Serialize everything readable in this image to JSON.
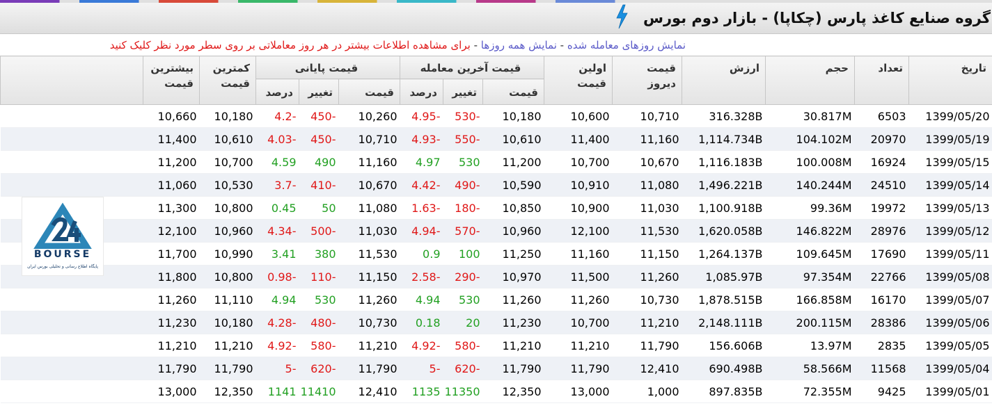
{
  "title": "گروه صنایع کاغذ پارس (چکاپا) - بازار دوم بورس",
  "info": {
    "link_traded": "نمایش روزهای معامله شده",
    "link_all": "نمایش همه روزها",
    "hint": "برای مشاهده اطلاعات بیشتر در هر روز معاملاتی بر روی سطر مورد نظر کلیک کنید"
  },
  "headers": {
    "date": "تاریخ",
    "count": "تعداد",
    "volume": "حجم",
    "value": "ارزش",
    "prev_price": "قیمت دیروز",
    "first_price": "اولین قیمت",
    "last_trade": "قیمت آخرین معامله",
    "closing": "قیمت پایانی",
    "low": "کمترین قیمت",
    "high": "بیشترین قیمت",
    "sub_price": "قیمت",
    "sub_change": "تغییر",
    "sub_percent": "درصد"
  },
  "logo": {
    "word": "BOURSE",
    "tagline": "پایگاه اطلاع رسانی و تحلیلی بورس ایران"
  },
  "rows": [
    {
      "date": "1399/05/20",
      "count": "6503",
      "volume": "30.817M",
      "value": "316.328B",
      "prev": "10,710",
      "first": "10,600",
      "lt_price": "10,180",
      "lt_change": "-530",
      "lt_pct": "-4.95",
      "cl_price": "10,260",
      "cl_change": "-450",
      "cl_pct": "-4.2",
      "low": "10,180",
      "high": "10,660"
    },
    {
      "date": "1399/05/19",
      "count": "20970",
      "volume": "104.102M",
      "value": "1,114.734B",
      "prev": "11,160",
      "first": "11,400",
      "lt_price": "10,610",
      "lt_change": "-550",
      "lt_pct": "-4.93",
      "cl_price": "10,710",
      "cl_change": "-450",
      "cl_pct": "-4.03",
      "low": "10,610",
      "high": "11,400"
    },
    {
      "date": "1399/05/15",
      "count": "16924",
      "volume": "100.008M",
      "value": "1,116.183B",
      "prev": "10,670",
      "first": "10,700",
      "lt_price": "11,200",
      "lt_change": "530",
      "lt_pct": "4.97",
      "cl_price": "11,160",
      "cl_change": "490",
      "cl_pct": "4.59",
      "low": "10,700",
      "high": "11,200"
    },
    {
      "date": "1399/05/14",
      "count": "24510",
      "volume": "140.244M",
      "value": "1,496.221B",
      "prev": "11,080",
      "first": "10,910",
      "lt_price": "10,590",
      "lt_change": "-490",
      "lt_pct": "-4.42",
      "cl_price": "10,670",
      "cl_change": "-410",
      "cl_pct": "-3.7",
      "low": "10,530",
      "high": "11,060"
    },
    {
      "date": "1399/05/13",
      "count": "19972",
      "volume": "99.36M",
      "value": "1,100.918B",
      "prev": "11,030",
      "first": "10,900",
      "lt_price": "10,850",
      "lt_change": "-180",
      "lt_pct": "-1.63",
      "cl_price": "11,080",
      "cl_change": "50",
      "cl_pct": "0.45",
      "low": "10,800",
      "high": "11,300"
    },
    {
      "date": "1399/05/12",
      "count": "28976",
      "volume": "146.822M",
      "value": "1,620.058B",
      "prev": "11,530",
      "first": "12,100",
      "lt_price": "10,960",
      "lt_change": "-570",
      "lt_pct": "-4.94",
      "cl_price": "11,030",
      "cl_change": "-500",
      "cl_pct": "-4.34",
      "low": "10,960",
      "high": "12,100"
    },
    {
      "date": "1399/05/11",
      "count": "17690",
      "volume": "109.645M",
      "value": "1,264.137B",
      "prev": "11,150",
      "first": "11,160",
      "lt_price": "11,250",
      "lt_change": "100",
      "lt_pct": "0.9",
      "cl_price": "11,530",
      "cl_change": "380",
      "cl_pct": "3.41",
      "low": "10,990",
      "high": "11,700"
    },
    {
      "date": "1399/05/08",
      "count": "22766",
      "volume": "97.354M",
      "value": "1,085.97B",
      "prev": "11,260",
      "first": "11,500",
      "lt_price": "10,970",
      "lt_change": "-290",
      "lt_pct": "-2.58",
      "cl_price": "11,150",
      "cl_change": "-110",
      "cl_pct": "-0.98",
      "low": "10,800",
      "high": "11,800"
    },
    {
      "date": "1399/05/07",
      "count": "16170",
      "volume": "166.858M",
      "value": "1,878.515B",
      "prev": "10,730",
      "first": "11,260",
      "lt_price": "11,260",
      "lt_change": "530",
      "lt_pct": "4.94",
      "cl_price": "11,260",
      "cl_change": "530",
      "cl_pct": "4.94",
      "low": "11,110",
      "high": "11,260"
    },
    {
      "date": "1399/05/06",
      "count": "28386",
      "volume": "200.115M",
      "value": "2,148.111B",
      "prev": "11,210",
      "first": "10,700",
      "lt_price": "11,230",
      "lt_change": "20",
      "lt_pct": "0.18",
      "cl_price": "10,730",
      "cl_change": "-480",
      "cl_pct": "-4.28",
      "low": "10,180",
      "high": "11,230"
    },
    {
      "date": "1399/05/05",
      "count": "2835",
      "volume": "13.97M",
      "value": "156.606B",
      "prev": "11,790",
      "first": "11,210",
      "lt_price": "11,210",
      "lt_change": "-580",
      "lt_pct": "-4.92",
      "cl_price": "11,210",
      "cl_change": "-580",
      "cl_pct": "-4.92",
      "low": "11,210",
      "high": "11,210"
    },
    {
      "date": "1399/05/04",
      "count": "11568",
      "volume": "58.566M",
      "value": "690.498B",
      "prev": "12,410",
      "first": "11,790",
      "lt_price": "11,790",
      "lt_change": "-620",
      "lt_pct": "-5",
      "cl_price": "11,790",
      "cl_change": "-620",
      "cl_pct": "-5",
      "low": "11,790",
      "high": "11,790"
    },
    {
      "date": "1399/05/01",
      "count": "9425",
      "volume": "72.355M",
      "value": "897.835B",
      "prev": "1,000",
      "first": "13,000",
      "lt_price": "12,350",
      "lt_change": "11350",
      "lt_pct": "1135",
      "cl_price": "12,410",
      "cl_change": "11410",
      "cl_pct": "1141",
      "low": "12,350",
      "high": "13,000"
    }
  ]
}
